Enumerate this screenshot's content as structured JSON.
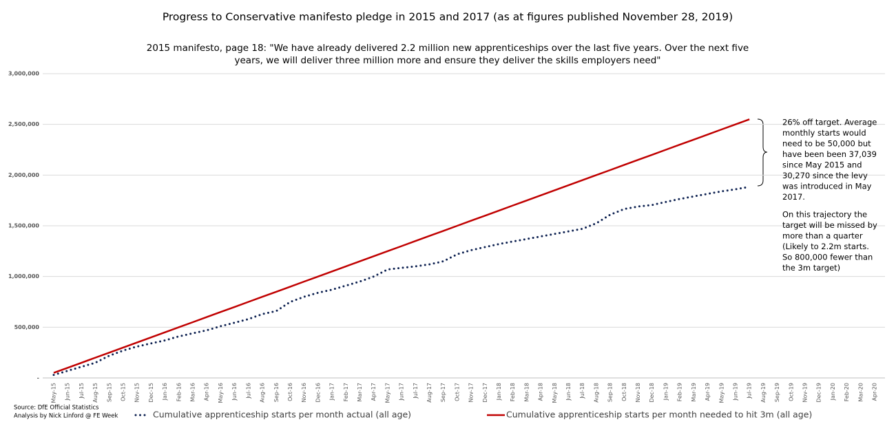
{
  "chart_data": {
    "type": "line",
    "title": "Progress to Conservative manifesto pledge in 2015 and 2017 (as at figures published November 28, 2019)",
    "subtitle": [
      "2015 manifesto, page 18: \"We have already delivered 2.2 million new apprenticeships over the last five years. Over the next five",
      "years, we will deliver three million more and ensure they deliver the skills employers need\""
    ],
    "categories": [
      "May-15",
      "Jun-15",
      "Jul-15",
      "Aug-15",
      "Sep-15",
      "Oct-15",
      "Nov-15",
      "Dec-15",
      "Jan-16",
      "Feb-16",
      "Mar-16",
      "Apr-16",
      "May-16",
      "Jun-16",
      "Jul-16",
      "Aug-16",
      "Sep-16",
      "Oct-16",
      "Nov-16",
      "Dec-16",
      "Jan-17",
      "Feb-17",
      "Mar-17",
      "Apr-17",
      "May-17",
      "Jun-17",
      "Jul-17",
      "Aug-17",
      "Sep-17",
      "Oct-17",
      "Nov-17",
      "Dec-17",
      "Jan-18",
      "Feb-18",
      "Mar-18",
      "Apr-18",
      "May-18",
      "Jun-18",
      "Jul-18",
      "Aug-18",
      "Sep-18",
      "Oct-18",
      "Nov-18",
      "Dec-18",
      "Jan-19",
      "Feb-19",
      "Mar-19",
      "Apr-19",
      "May-19",
      "Jun-19",
      "Jul-19",
      "Aug-19",
      "Sep-19",
      "Oct-19",
      "Nov-19",
      "Dec-19",
      "Jan-20",
      "Feb-20",
      "Mar-20",
      "Apr-20"
    ],
    "series": [
      {
        "name": "Cumulative apprenticeship starts per month actual (all age)",
        "color": "#0d2151",
        "style": "dotted",
        "values": [
          30000,
          70000,
          110000,
          150000,
          220000,
          270000,
          310000,
          340000,
          370000,
          410000,
          440000,
          470000,
          510000,
          545000,
          580000,
          630000,
          660000,
          750000,
          800000,
          840000,
          870000,
          910000,
          950000,
          1000000,
          1070000,
          1085000,
          1100000,
          1120000,
          1150000,
          1220000,
          1260000,
          1290000,
          1320000,
          1345000,
          1370000,
          1395000,
          1420000,
          1445000,
          1470000,
          1525000,
          1610000,
          1665000,
          1690000,
          1705000,
          1735000,
          1765000,
          1790000,
          1815000,
          1840000,
          1860000,
          1885000,
          null,
          null,
          null,
          null,
          null,
          null,
          null,
          null,
          null
        ]
      },
      {
        "name": "Cumulative apprenticeship starts per month needed to hit 3m (all age)",
        "color": "#c00000",
        "style": "solid",
        "values": [
          50000,
          100000,
          150000,
          200000,
          250000,
          300000,
          350000,
          400000,
          450000,
          500000,
          550000,
          600000,
          650000,
          700000,
          750000,
          800000,
          850000,
          900000,
          950000,
          1000000,
          1050000,
          1100000,
          1150000,
          1200000,
          1250000,
          1300000,
          1350000,
          1400000,
          1450000,
          1500000,
          1550000,
          1600000,
          1650000,
          1700000,
          1750000,
          1800000,
          1850000,
          1900000,
          1950000,
          2000000,
          2050000,
          2100000,
          2150000,
          2200000,
          2250000,
          2300000,
          2350000,
          2400000,
          2450000,
          2500000,
          2550000,
          null,
          null,
          null,
          null,
          null,
          null,
          null,
          null,
          null
        ]
      }
    ],
    "ylim": [
      0,
      3000000
    ],
    "yticks": [
      {
        "value": 0,
        "label": "-"
      },
      {
        "value": 500000,
        "label": "500,000"
      },
      {
        "value": 1000000,
        "label": "1,000,000"
      },
      {
        "value": 1500000,
        "label": "1,500,000"
      },
      {
        "value": 2000000,
        "label": "2,000,000"
      },
      {
        "value": 2500000,
        "label": "2,500,000"
      },
      {
        "value": 3000000,
        "label": "3,000,000"
      }
    ],
    "grid": true,
    "annotation": [
      [
        "26% off target. Average",
        "monthly starts would",
        "need to be 50,000 but",
        "have been been 37,039",
        "since May 2015 and",
        "30,270 since the levy",
        "was introduced in May",
        "2017."
      ],
      [
        "On this trajectory the",
        "target will be missed by",
        "more than a quarter",
        "(Likely to 2.2m starts.",
        "So 800,000 fewer than",
        "the 3m target)"
      ]
    ],
    "source": [
      "Source: DfE Official Statistics",
      "Analysis by Nick Linford @ FE Week"
    ]
  }
}
